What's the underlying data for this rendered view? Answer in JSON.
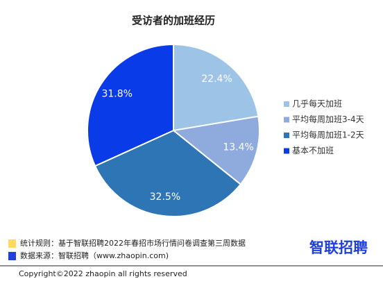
{
  "chart_data": {
    "type": "pie",
    "title": "受访者的加班经历",
    "categories": [
      "几乎每天加班",
      "平均每周加班3-4天",
      "平均每周加班1-2天",
      "基本不加班"
    ],
    "values": [
      22.4,
      13.4,
      32.5,
      31.8
    ],
    "value_labels": [
      "22.4%",
      "13.4%",
      "32.5%",
      "31.8%"
    ],
    "colors": [
      "#9DC3E6",
      "#8FAADC",
      "#2E75B6",
      "#0A3BE8"
    ],
    "legend": "right"
  },
  "footer": {
    "notes": [
      {
        "text": "统计规则：基于智联招聘2022年春招市场行情问卷调查第三周数据",
        "color": "#FFD966"
      },
      {
        "text": "数据来源：智联招聘（www.zhaopin.com)",
        "color": "#1F3FE0"
      }
    ],
    "copyright": "Copyright©2022 zhaopin all rights reserved",
    "logo": "智联招聘"
  }
}
